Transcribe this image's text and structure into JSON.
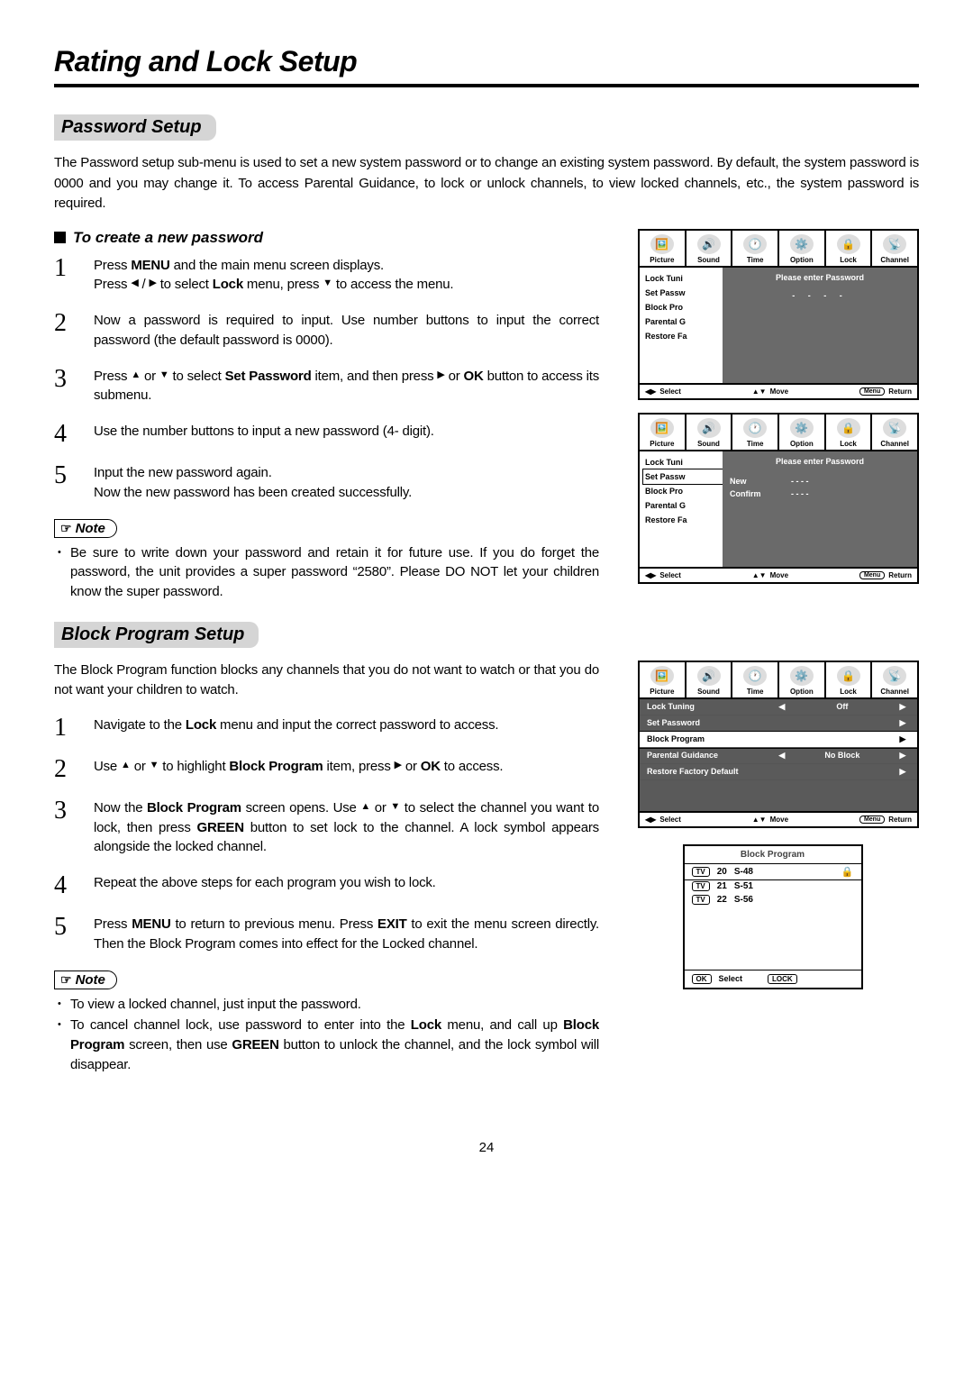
{
  "page_number": "24",
  "main_title": "Rating and Lock Setup",
  "password_section": {
    "label": "Password Setup",
    "intro": "The Password setup sub-menu is used to set a new system password or to change an existing system password. By default, the system password is 0000 and you may change it. To access Parental Guidance, to lock or unlock channels, to view locked channels, etc., the system password is required.",
    "subhead": "To create a new password",
    "step1a": "Press ",
    "step1b": "MENU",
    "step1c": " and the main menu screen displays.",
    "step1d": "Press ",
    "step1e": " / ",
    "step1f": " to select ",
    "step1g": "Lock",
    "step1h": " menu,  press ",
    "step1i": "  to access the menu.",
    "step2": "Now a password is required to input. Use number buttons to input the correct password (the default password is 0000).",
    "step3a": "Press ",
    "step3b": " or ",
    "step3c": "  to select ",
    "step3d": "Set Password",
    "step3e": " item, and then press  ",
    "step3f": " or ",
    "step3g": "OK",
    "step3h": " button to access its submenu.",
    "step4": "Use  the number buttons to input a  new password (4- digit).",
    "step5a": "Input the new password again.",
    "step5b": "Now the new password has been created successfully.",
    "note1": "Be sure to write down your password and retain it for future use. If you do forget the password, the unit provides a  super password “2580”. Please DO NOT let your children know the super password."
  },
  "block_section": {
    "label": "Block Program Setup",
    "intro": "The Block Program function blocks any channels that you do not want to watch or that you do not want your children to watch.",
    "step1a": "Navigate to the ",
    "step1b": "Lock",
    "step1c": " menu and input the correct password to access.",
    "step2a": "Use ",
    "step2b": " or ",
    "step2c": " to highlight ",
    "step2d": "Block Program",
    "step2e": " item, press  ",
    "step2f": " or  ",
    "step2g": "OK",
    "step2h": " to access.",
    "step3a": "Now the ",
    "step3b": "Block Program",
    "step3c": " screen opens. Use ",
    "step3d": " or ",
    "step3e": " to select the channel you want to lock, then press ",
    "step3f": "GREEN",
    "step3g": " button to set lock to the channel. A lock symbol appears alongside the locked channel.",
    "step4": "Repeat the above steps for each program you wish to lock.",
    "step5a": "Press ",
    "step5b": "MENU",
    "step5c": " to return to previous menu. Press ",
    "step5d": "EXIT",
    "step5e": " to exit the menu screen directly.  Then the Block Program comes into effect for the Locked channel.",
    "note1": "To view a locked channel, just input the password.",
    "note2a": "To cancel channel lock, use password  to enter into the ",
    "note2b": "Lock",
    "note2c": " menu,  and call up ",
    "note2d": "Block Program",
    "note2e": " screen, then use ",
    "note2f": "GREEN",
    "note2g": " button to unlock the channel, and the lock symbol will disappear."
  },
  "osd": {
    "tabs": [
      "Picture",
      "Sound",
      "Time",
      "Option",
      "Lock",
      "Channel"
    ],
    "tab_icons": [
      "🖼️",
      "🔊",
      "🕐",
      "⚙️",
      "🔒",
      "📡"
    ],
    "sidelist": [
      "Lock Tuni",
      "Set Passw",
      "Block Pro",
      "Parental G",
      "Restore Fa"
    ],
    "enter_pw_title": "Please enter Password",
    "dots": "- - - -",
    "new_label": "New",
    "confirm_label": "Confirm",
    "footer_select": "Select",
    "footer_move": "Move",
    "footer_return": "Return",
    "footer_menu": "Menu",
    "lockmenu_rows": [
      {
        "label": "Lock Tuning",
        "mid": "Off",
        "left": "◀",
        "right": "▶"
      },
      {
        "label": "Set Password",
        "mid": "",
        "left": "",
        "right": "▶"
      },
      {
        "label": "Block Program",
        "mid": "",
        "left": "",
        "right": "▶"
      },
      {
        "label": "Parental Guidance",
        "mid": "No Block",
        "left": "◀",
        "right": "▶"
      },
      {
        "label": "Restore Factory Default",
        "mid": "",
        "left": "",
        "right": "▶"
      }
    ],
    "bp_title": "Block Program",
    "bp_rows": [
      {
        "num": "20",
        "name": "S-48",
        "locked": true,
        "sel": true
      },
      {
        "num": "21",
        "name": "S-51",
        "locked": false,
        "sel": false
      },
      {
        "num": "22",
        "name": "S-56",
        "locked": false,
        "sel": false
      }
    ],
    "bp_ok": "OK",
    "bp_select": "Select",
    "bp_lock": "LOCK"
  },
  "note_label": "Note",
  "colors": {
    "section_bg": "#d5d5d5",
    "osd_panel_bg": "#6a6a6a",
    "osd_row_bg": "#5a5a5a"
  }
}
